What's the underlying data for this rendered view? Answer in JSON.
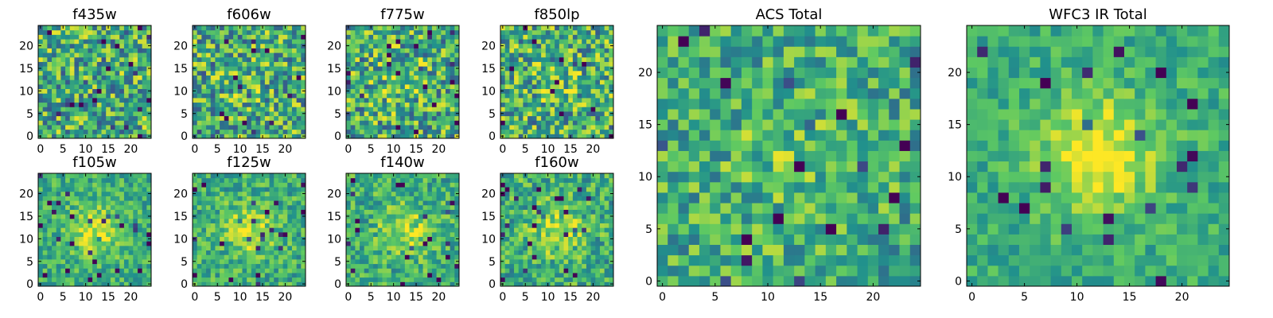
{
  "chart_data": [
    {
      "type": "heatmap",
      "title": "f435w",
      "grid_size": 25,
      "xticks": [
        "0",
        "5",
        "10",
        "15",
        "20"
      ],
      "yticks": [
        "0",
        "5",
        "10",
        "15",
        "20"
      ],
      "pattern": {
        "seed": 11,
        "peak": 0.0,
        "noise": 1.0
      }
    },
    {
      "type": "heatmap",
      "title": "f606w",
      "grid_size": 25,
      "xticks": [
        "0",
        "5",
        "10",
        "15",
        "20"
      ],
      "yticks": [
        "0",
        "5",
        "10",
        "15",
        "20"
      ],
      "pattern": {
        "seed": 23,
        "peak": 0.15,
        "noise": 1.0
      }
    },
    {
      "type": "heatmap",
      "title": "f775w",
      "grid_size": 25,
      "xticks": [
        "0",
        "5",
        "10",
        "15",
        "20"
      ],
      "yticks": [
        "0",
        "5",
        "10",
        "15",
        "20"
      ],
      "pattern": {
        "seed": 37,
        "peak": 0.25,
        "noise": 1.0
      }
    },
    {
      "type": "heatmap",
      "title": "f850lp",
      "grid_size": 25,
      "xticks": [
        "0",
        "5",
        "10",
        "15",
        "20"
      ],
      "yticks": [
        "0",
        "5",
        "10",
        "15",
        "20"
      ],
      "pattern": {
        "seed": 41,
        "peak": 0.2,
        "noise": 1.0
      }
    },
    {
      "type": "heatmap",
      "title": "f105w",
      "grid_size": 25,
      "xticks": [
        "0",
        "5",
        "10",
        "15",
        "20"
      ],
      "yticks": [
        "0",
        "5",
        "10",
        "15",
        "20"
      ],
      "pattern": {
        "seed": 53,
        "peak": 0.8,
        "noise": 0.55
      }
    },
    {
      "type": "heatmap",
      "title": "f125w",
      "grid_size": 25,
      "xticks": [
        "0",
        "5",
        "10",
        "15",
        "20"
      ],
      "yticks": [
        "0",
        "5",
        "10",
        "15",
        "20"
      ],
      "pattern": {
        "seed": 67,
        "peak": 0.75,
        "noise": 0.6
      }
    },
    {
      "type": "heatmap",
      "title": "f140w",
      "grid_size": 25,
      "xticks": [
        "0",
        "5",
        "10",
        "15",
        "20"
      ],
      "yticks": [
        "0",
        "5",
        "10",
        "15",
        "20"
      ],
      "pattern": {
        "seed": 71,
        "peak": 0.7,
        "noise": 0.65
      }
    },
    {
      "type": "heatmap",
      "title": "f160w",
      "grid_size": 25,
      "xticks": [
        "0",
        "5",
        "10",
        "15",
        "20"
      ],
      "yticks": [
        "0",
        "5",
        "10",
        "15",
        "20"
      ],
      "pattern": {
        "seed": 83,
        "peak": 0.65,
        "noise": 0.7
      }
    },
    {
      "type": "heatmap",
      "title": "ACS Total",
      "grid_size": 25,
      "xticks": [
        "0",
        "5",
        "10",
        "15",
        "20"
      ],
      "yticks": [
        "0",
        "5",
        "10",
        "15",
        "20"
      ],
      "pattern": {
        "seed": 97,
        "peak": 0.3,
        "noise": 0.75
      }
    },
    {
      "type": "heatmap",
      "title": "WFC3 IR Total",
      "grid_size": 25,
      "xticks": [
        "0",
        "5",
        "10",
        "15",
        "20"
      ],
      "yticks": [
        "0",
        "5",
        "10",
        "15",
        "20"
      ],
      "pattern": {
        "seed": 101,
        "peak": 1.0,
        "noise": 0.45
      }
    }
  ],
  "colormap": [
    "#440154",
    "#3b528b",
    "#21918c",
    "#5ec962",
    "#fde725"
  ]
}
